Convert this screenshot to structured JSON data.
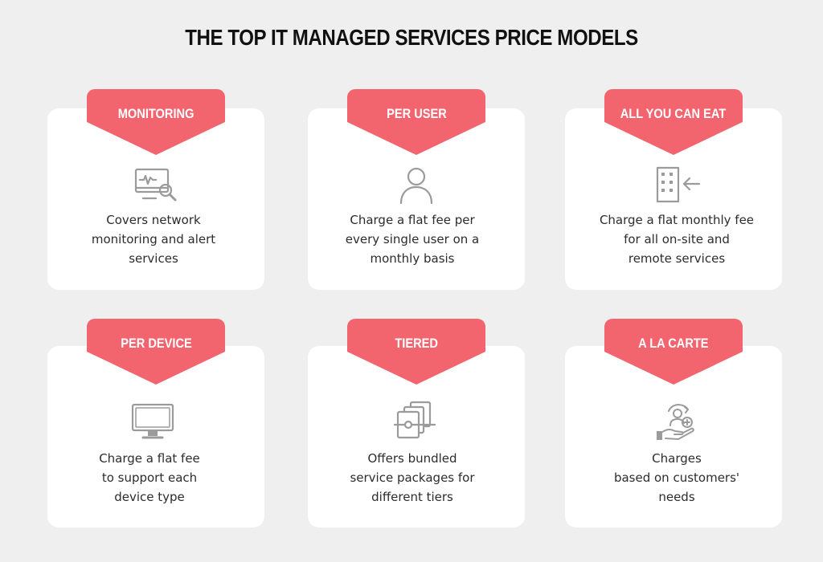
{
  "title": "THE TOP IT MANAGED SERVICES PRICE MODELS",
  "colors": {
    "accent": "#f2656f",
    "background": "#efefef",
    "card": "#ffffff",
    "icon": "#9b9b9b"
  },
  "cards": [
    {
      "label": "MONITORING",
      "icon": "monitor-search-icon",
      "lines": [
        "Covers network",
        "monitoring and alert",
        "services"
      ]
    },
    {
      "label": "PER USER",
      "icon": "user-icon",
      "lines": [
        "Charge a flat fee per",
        "every single user on a",
        "monthly basis"
      ]
    },
    {
      "label": "ALL YOU CAN EAT",
      "icon": "building-arrow-icon",
      "lines": [
        "Charge a flat monthly fee",
        "for all on-site and",
        "remote services"
      ]
    },
    {
      "label": "PER DEVICE",
      "icon": "desktop-monitor-icon",
      "lines": [
        "Charge a flat fee",
        "to support each",
        "device type"
      ]
    },
    {
      "label": "TIERED",
      "icon": "stacked-packages-icon",
      "lines": [
        "Offers bundled",
        "service packages for",
        "different tiers"
      ]
    },
    {
      "label": "A LA CARTE",
      "icon": "hand-customer-icon",
      "lines": [
        "Charges",
        "based on customers'",
        "needs"
      ]
    }
  ]
}
